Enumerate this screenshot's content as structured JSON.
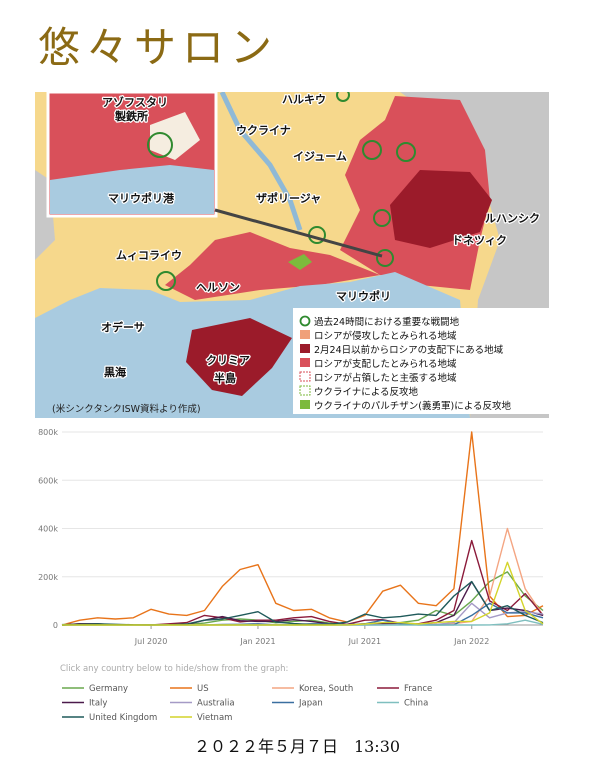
{
  "header": {
    "title": "悠々サロン"
  },
  "map": {
    "labels": [
      "アゾフスタリ",
      "製鉄所",
      "マリウポリ港",
      "ハルキウ",
      "ウクライナ",
      "イジューム",
      "ザポリージャ",
      "ルハンシク",
      "ドネツィク",
      "ムィコライウ",
      "ヘルソン",
      "マリウポリ",
      "オデーサ",
      "黒海",
      "クリミア",
      "半島"
    ],
    "legend": [
      "過去24時間における重要な戦闘地",
      "ロシアが侵攻したとみられる地域",
      "2月24日以前からロシアの支配下にある地域",
      "ロシアが支配したとみられる地域",
      "ロシアが占領したと主張する地域",
      "ウクライナによる反攻地",
      "ウクライナのパルチザン(義勇軍)による反攻地"
    ],
    "source": "(米シンクタンクISW資料より作成)"
  },
  "chart_data": {
    "type": "line",
    "x": [
      "2020-02",
      "2020-03",
      "2020-04",
      "2020-05",
      "2020-06",
      "2020-07",
      "2020-08",
      "2020-09",
      "2020-10",
      "2020-11",
      "2020-12",
      "2021-01",
      "2021-02",
      "2021-03",
      "2021-04",
      "2021-05",
      "2021-06",
      "2021-07",
      "2021-08",
      "2021-09",
      "2021-10",
      "2021-11",
      "2021-12",
      "2022-01",
      "2022-02",
      "2022-03",
      "2022-04",
      "2022-05"
    ],
    "xlim": [
      "2020-02",
      "2022-05"
    ],
    "xticks": [
      {
        "value": "2020-07",
        "label": "Jul 2020"
      },
      {
        "value": "2021-01",
        "label": "Jan 2021"
      },
      {
        "value": "2021-07",
        "label": "Jul 2021"
      },
      {
        "value": "2022-01",
        "label": "Jan 2022"
      }
    ],
    "ylim": [
      0,
      800000
    ],
    "yticks": [
      0,
      {
        "value": 200000,
        "label": "200k"
      },
      {
        "value": 400000,
        "label": "400k"
      },
      {
        "value": 600000,
        "label": "600k"
      },
      {
        "value": 800000,
        "label": "800k"
      }
    ],
    "grid": true,
    "hint": "Click any country below to hide/show from the graph:",
    "series": [
      {
        "name": "Germany",
        "color": "#6aa84f",
        "values": [
          0,
          4000,
          3000,
          1000,
          500,
          500,
          1500,
          2000,
          8000,
          20000,
          25000,
          20000,
          9000,
          15000,
          20000,
          8000,
          1000,
          1500,
          8000,
          10000,
          20000,
          60000,
          40000,
          100000,
          180000,
          220000,
          120000,
          60000
        ]
      },
      {
        "name": "US",
        "color": "#e8741a",
        "values": [
          0,
          20000,
          30000,
          25000,
          30000,
          65000,
          45000,
          40000,
          60000,
          160000,
          230000,
          250000,
          90000,
          60000,
          65000,
          30000,
          12000,
          40000,
          140000,
          165000,
          90000,
          80000,
          150000,
          800000,
          120000,
          35000,
          40000,
          80000
        ]
      },
      {
        "name": "Korea, South",
        "color": "#f4a582",
        "values": [
          0,
          500,
          100,
          50,
          50,
          50,
          200,
          100,
          100,
          300,
          1000,
          500,
          400,
          400,
          600,
          600,
          500,
          1500,
          2000,
          2000,
          1500,
          3000,
          6000,
          15000,
          120000,
          400000,
          150000,
          40000
        ]
      },
      {
        "name": "France",
        "color": "#8b1a3a",
        "values": [
          0,
          5000,
          5000,
          1000,
          500,
          500,
          5000,
          10000,
          40000,
          30000,
          13000,
          20000,
          20000,
          30000,
          35000,
          15000,
          3000,
          20000,
          22000,
          7000,
          5000,
          20000,
          60000,
          350000,
          100000,
          60000,
          130000,
          40000
        ]
      },
      {
        "name": "Italy",
        "color": "#4b1a4b",
        "values": [
          0,
          5000,
          4000,
          1000,
          300,
          200,
          1000,
          1500,
          20000,
          35000,
          18000,
          15000,
          15000,
          22000,
          15000,
          5000,
          1000,
          5000,
          6000,
          4000,
          3000,
          10000,
          40000,
          180000,
          60000,
          70000,
          60000,
          40000
        ]
      },
      {
        "name": "Australia",
        "color": "#a59ac6",
        "values": [
          0,
          300,
          50,
          20,
          20,
          300,
          300,
          50,
          20,
          10,
          20,
          10,
          10,
          10,
          10,
          10,
          10,
          100,
          500,
          1500,
          2000,
          1500,
          10000,
          90000,
          30000,
          50000,
          55000,
          45000
        ]
      },
      {
        "name": "Japan",
        "color": "#3a6fa0",
        "values": [
          0,
          100,
          400,
          50,
          50,
          600,
          1000,
          500,
          600,
          2000,
          3000,
          5000,
          1000,
          1500,
          5000,
          4000,
          1500,
          5000,
          20000,
          5000,
          300,
          100,
          300,
          40000,
          90000,
          50000,
          50000,
          30000
        ]
      },
      {
        "name": "China",
        "color": "#7fbfbf",
        "values": [
          2000,
          100,
          50,
          10,
          10,
          50,
          50,
          10,
          10,
          10,
          20,
          100,
          20,
          10,
          20,
          20,
          20,
          50,
          100,
          50,
          50,
          50,
          200,
          200,
          300,
          5000,
          20000,
          3000
        ]
      },
      {
        "name": "United Kingdom",
        "color": "#1f5a5a",
        "values": [
          0,
          3000,
          5000,
          3000,
          1000,
          600,
          1000,
          4000,
          20000,
          25000,
          40000,
          55000,
          12000,
          6000,
          2500,
          2500,
          12000,
          45000,
          30000,
          35000,
          45000,
          40000,
          120000,
          180000,
          60000,
          80000,
          40000,
          10000
        ]
      },
      {
        "name": "Vietnam",
        "color": "#d4d42a",
        "values": [
          0,
          10,
          10,
          0,
          0,
          10,
          30,
          10,
          0,
          0,
          0,
          10,
          20,
          10,
          10,
          100,
          300,
          4000,
          10000,
          10000,
          4000,
          10000,
          15000,
          15000,
          50000,
          260000,
          60000,
          5000
        ]
      }
    ]
  },
  "footer": {
    "date": "２０２２年５月７日　13:30"
  }
}
